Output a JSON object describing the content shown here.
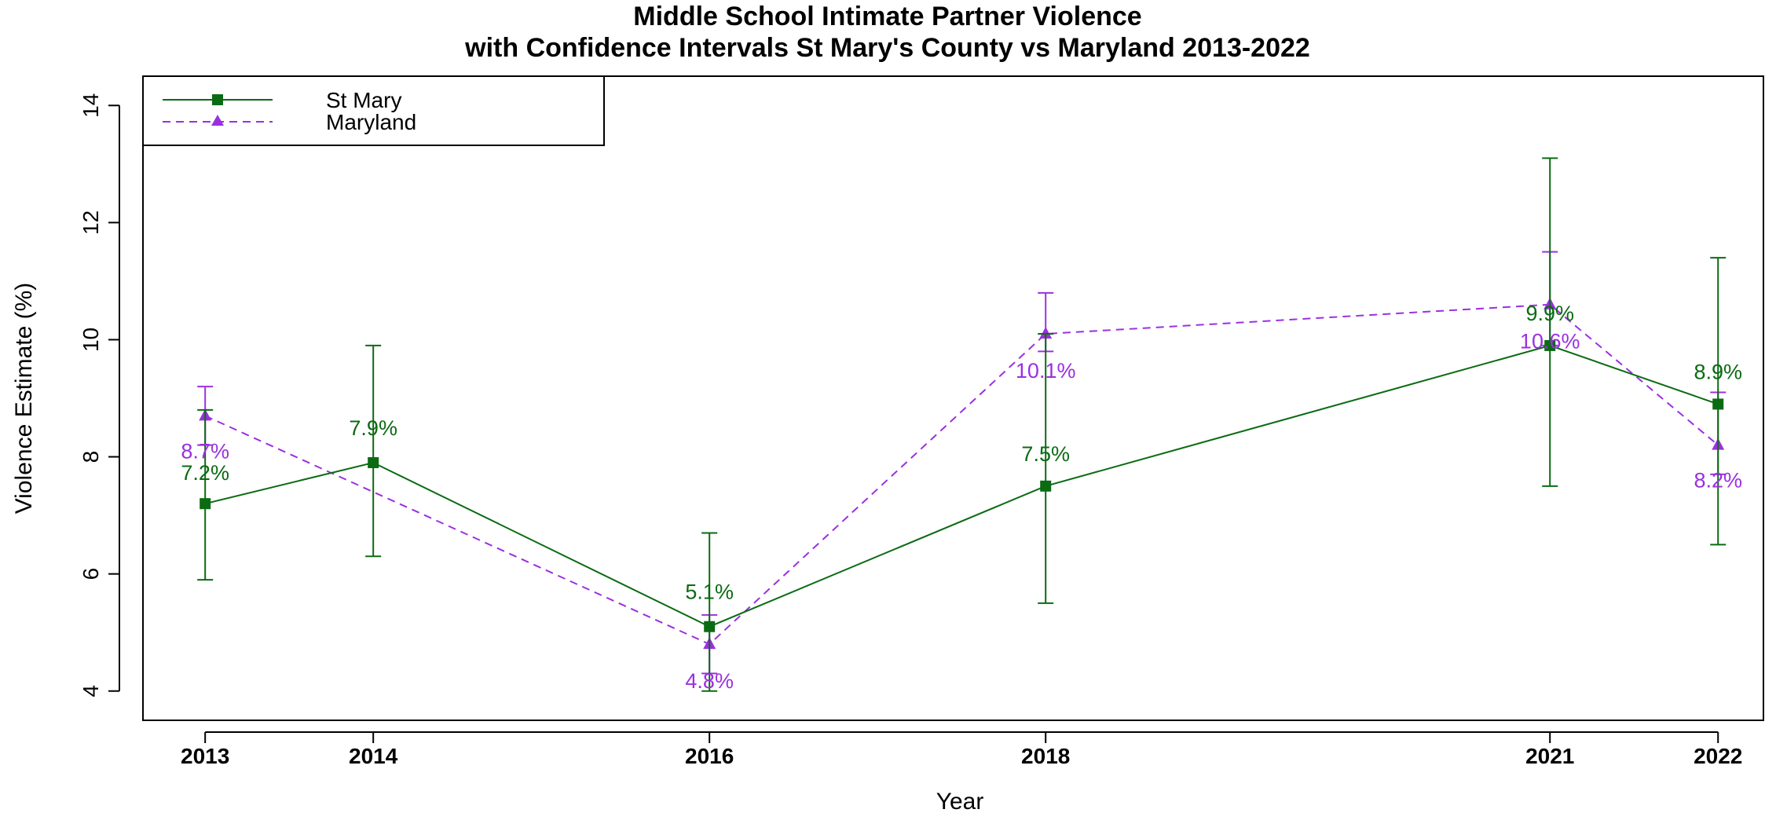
{
  "chart_data": {
    "type": "line",
    "title_line1": "Middle School Intimate Partner Violence",
    "title_line2": "with Confidence Intervals St Mary's County vs Maryland 2013-2022",
    "xlabel": "Year",
    "ylabel": "Violence Estimate (%)",
    "x": [
      2013,
      2014,
      2016,
      2018,
      2021,
      2022
    ],
    "xlim": [
      2012.63,
      2022.27
    ],
    "ylim": [
      3.5,
      14.5
    ],
    "yticks": [
      4,
      6,
      8,
      10,
      12,
      14
    ],
    "grid": false,
    "legend_position": "top-left",
    "series": [
      {
        "name": "St Mary",
        "color": "#0b6b12",
        "line_style": "solid",
        "marker": "square",
        "x": [
          2013,
          2014,
          2016,
          2018,
          2021,
          2022
        ],
        "values": [
          7.2,
          7.9,
          5.1,
          7.5,
          9.9,
          8.9
        ],
        "ci_lower": [
          5.9,
          6.3,
          4.0,
          5.5,
          7.5,
          6.5
        ],
        "ci_upper": [
          8.8,
          9.9,
          6.7,
          10.1,
          13.1,
          11.4
        ],
        "labels": [
          "7.2%",
          "7.9%",
          "5.1%",
          "7.5%",
          "9.9%",
          "8.9%"
        ]
      },
      {
        "name": "Maryland",
        "color": "#9b30e0",
        "line_style": "dashed",
        "marker": "triangle",
        "x": [
          2013,
          2016,
          2018,
          2021,
          2022
        ],
        "values": [
          8.7,
          4.8,
          10.1,
          10.6,
          8.2
        ],
        "ci_lower": [
          8.2,
          4.3,
          9.8,
          9.9,
          7.7
        ],
        "ci_upper": [
          9.2,
          5.3,
          10.8,
          11.5,
          9.1
        ],
        "labels": [
          "8.7%",
          "4.8%",
          "10.1%",
          "10.6%",
          "8.2%"
        ]
      }
    ]
  }
}
